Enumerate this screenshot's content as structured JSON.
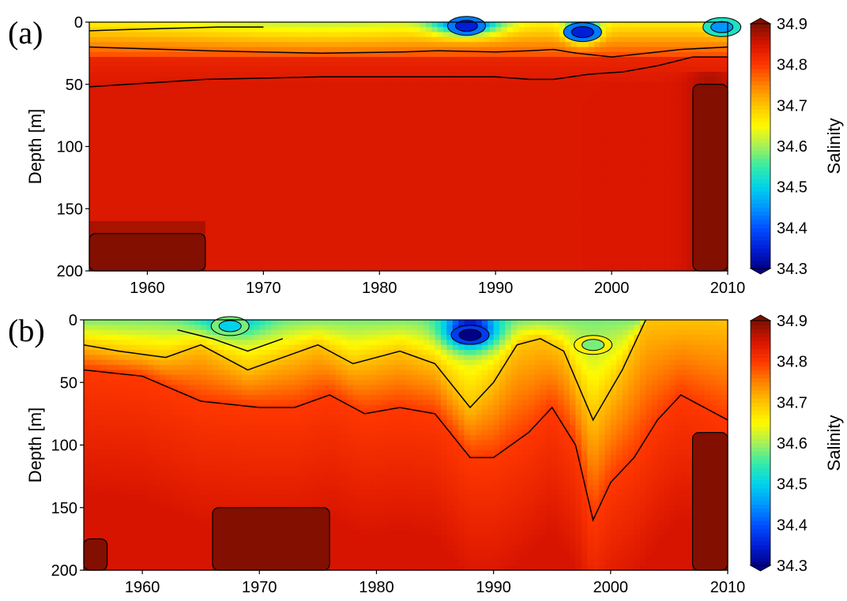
{
  "chart_data": [
    {
      "type": "heatmap",
      "panel_label": "(a)",
      "xlabel": "",
      "ylabel": "Depth [m]",
      "xlim": [
        1955,
        2010
      ],
      "ylim": [
        200,
        0
      ],
      "xticks": [
        "1960",
        "1970",
        "1980",
        "1990",
        "2000",
        "2010"
      ],
      "yticks": [
        "0",
        "50",
        "100",
        "150",
        "200"
      ],
      "colorbar": {
        "label": "Salinity",
        "range": [
          34.3,
          34.9
        ],
        "ticks": [
          "34.3",
          "34.4",
          "34.5",
          "34.6",
          "34.7",
          "34.8",
          "34.9"
        ]
      },
      "contour_depths": [
        {
          "name": "34.8 isohaline",
          "x": [
            1955,
            1965,
            1975,
            1980,
            1985,
            1990,
            1993,
            1995,
            1998,
            2001,
            2004,
            2007,
            2010
          ],
          "y": [
            52,
            46,
            44,
            44,
            44,
            44,
            46,
            46,
            42,
            40,
            35,
            28,
            28
          ]
        },
        {
          "name": "34.7 isohaline",
          "x": [
            1955,
            1965,
            1975,
            1982,
            1985,
            1990,
            1993,
            1995,
            1997,
            2000,
            2003,
            2006,
            2010
          ],
          "y": [
            20,
            23,
            25,
            24,
            23,
            24,
            23,
            22,
            25,
            28,
            25,
            22,
            20
          ]
        },
        {
          "name": "34.6 isohaline",
          "x": [
            1955,
            1958,
            1962,
            1966,
            1970
          ],
          "y": [
            7,
            6,
            5,
            4,
            4
          ]
        }
      ],
      "maximum_regions": [
        {
          "x": [
            1955,
            1965
          ],
          "y": [
            170,
            200
          ]
        },
        {
          "x": [
            2007,
            2010
          ],
          "y": [
            50,
            200
          ]
        }
      ],
      "low_salinity_cores": [
        {
          "x": 1987.5,
          "y": 3,
          "value": 34.35
        },
        {
          "x": 1997.5,
          "y": 8,
          "value": 34.35
        },
        {
          "x": 2009.5,
          "y": 4,
          "value": 34.45
        }
      ]
    },
    {
      "type": "heatmap",
      "panel_label": "(b)",
      "xlabel": "",
      "ylabel": "Depth [m]",
      "xlim": [
        1955,
        2010
      ],
      "ylim": [
        200,
        0
      ],
      "xticks": [
        "1960",
        "1970",
        "1980",
        "1990",
        "2000",
        "2010"
      ],
      "yticks": [
        "0",
        "50",
        "100",
        "150",
        "200"
      ],
      "colorbar": {
        "label": "Salinity",
        "range": [
          34.3,
          34.9
        ],
        "ticks": [
          "34.3",
          "34.4",
          "34.5",
          "34.6",
          "34.7",
          "34.8",
          "34.9"
        ]
      },
      "contour_depths": [
        {
          "name": "34.7 isohaline",
          "x": [
            1955,
            1957,
            1960,
            1965,
            1970,
            1973,
            1976,
            1979,
            1982,
            1985,
            1988,
            1990,
            1993,
            1995,
            1997,
            1998.5,
            2000,
            2002,
            2004,
            2006,
            2010
          ],
          "y": [
            40,
            42,
            45,
            65,
            70,
            70,
            60,
            75,
            70,
            75,
            110,
            110,
            90,
            70,
            100,
            160,
            130,
            110,
            80,
            60,
            80
          ]
        },
        {
          "name": "34.6 isohaline",
          "x": [
            1955,
            1958,
            1962,
            1965,
            1969,
            1972,
            1975,
            1978,
            1982,
            1985,
            1988,
            1990,
            1992,
            1994,
            1996,
            1998.5,
            2001,
            2003
          ],
          "y": [
            20,
            25,
            30,
            20,
            40,
            30,
            20,
            35,
            25,
            35,
            70,
            50,
            20,
            15,
            25,
            80,
            40,
            0
          ]
        },
        {
          "name": "34.5 isohaline",
          "x": [
            1963,
            1966,
            1969,
            1972
          ],
          "y": [
            8,
            15,
            25,
            15
          ]
        }
      ],
      "maximum_regions": [
        {
          "x": [
            1955,
            1957
          ],
          "y": [
            175,
            200
          ]
        },
        {
          "x": [
            1966,
            1976
          ],
          "y": [
            150,
            200
          ]
        },
        {
          "x": [
            2007,
            2010
          ],
          "y": [
            90,
            200
          ]
        }
      ],
      "low_salinity_cores": [
        {
          "x": 1988,
          "y": 12,
          "value": 34.3
        },
        {
          "x": 1967.5,
          "y": 5,
          "value": 34.5
        },
        {
          "x": 1998.5,
          "y": 20,
          "value": 34.58
        }
      ]
    }
  ]
}
